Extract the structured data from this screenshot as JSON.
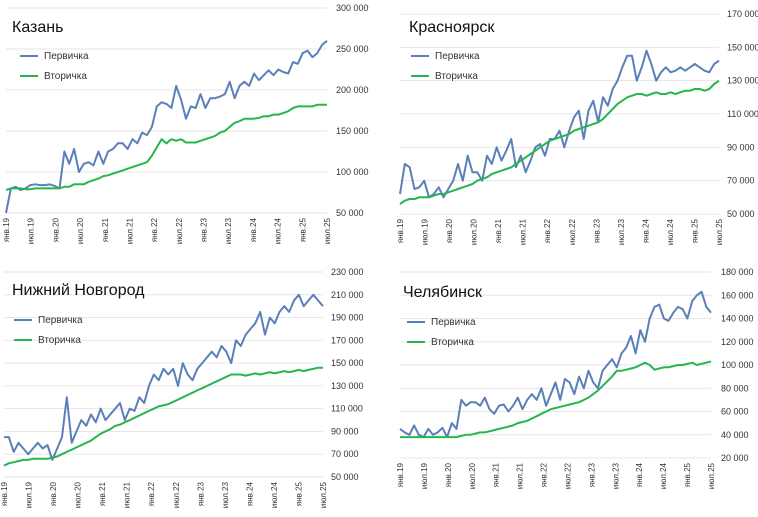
{
  "legend": {
    "primary": "Первичка",
    "secondary": "Вторичка"
  },
  "colors": {
    "primary": "#5b7fb9",
    "secondary": "#27b54f",
    "grid": "#e6e6e6"
  },
  "x_labels": [
    "янв.19",
    "июл.19",
    "янв.20",
    "июл.20",
    "янв.21",
    "июл.21",
    "янв.22",
    "июл.22",
    "янв.23",
    "июл.23",
    "янв.24",
    "июл.24",
    "янв.25",
    "июл.25"
  ],
  "chart_data": [
    {
      "type": "line",
      "title": "Казань",
      "ylim": [
        50000,
        300000
      ],
      "yticks": [
        "50 000",
        "100 000",
        "150 000",
        "200 000",
        "250 000",
        "300 000"
      ],
      "x_labels": [
        "янв.19",
        "июл.19",
        "янв.20",
        "июл.20",
        "янв.21",
        "июл.21",
        "янв.22",
        "июл.22",
        "янв.23",
        "июл.23",
        "янв.24",
        "июл.24",
        "янв.25",
        "июл.25"
      ],
      "series": [
        {
          "name": "Первичка",
          "values": [
            50000,
            80000,
            82000,
            78000,
            80000,
            84000,
            85000,
            84000,
            84000,
            85000,
            83000,
            80000,
            125000,
            110000,
            128000,
            100000,
            110000,
            112000,
            108000,
            125000,
            110000,
            125000,
            128000,
            135000,
            135000,
            128000,
            140000,
            135000,
            148000,
            145000,
            155000,
            180000,
            185000,
            183000,
            178000,
            205000,
            188000,
            165000,
            180000,
            178000,
            195000,
            178000,
            190000,
            190000,
            192000,
            195000,
            210000,
            190000,
            205000,
            210000,
            205000,
            220000,
            212000,
            218000,
            224000,
            218000,
            225000,
            222000,
            220000,
            234000,
            232000,
            245000,
            248000,
            240000,
            245000,
            255000,
            260000
          ]
        },
        {
          "name": "Вторичка",
          "values": [
            78000,
            80000,
            80000,
            80000,
            79000,
            79000,
            80000,
            80000,
            80000,
            80000,
            80000,
            80000,
            82000,
            82000,
            85000,
            85000,
            85000,
            88000,
            90000,
            92000,
            95000,
            96000,
            98000,
            100000,
            102000,
            104000,
            106000,
            108000,
            110000,
            112000,
            120000,
            130000,
            140000,
            135000,
            140000,
            138000,
            140000,
            136000,
            136000,
            136000,
            138000,
            140000,
            142000,
            144000,
            148000,
            150000,
            155000,
            160000,
            162000,
            165000,
            165000,
            165000,
            166000,
            168000,
            168000,
            170000,
            170000,
            172000,
            174000,
            178000,
            180000,
            180000,
            180000,
            180000,
            182000,
            182000,
            182000
          ]
        }
      ]
    },
    {
      "type": "line",
      "title": "Красноярск",
      "ylim": [
        50000,
        170000
      ],
      "yticks": [
        "50 000",
        "70 000",
        "90 000",
        "110 000",
        "130 000",
        "150 000",
        "170 000"
      ],
      "x_labels": [
        "янв.19",
        "июл.19",
        "янв.20",
        "июл.20",
        "янв.21",
        "июл.21",
        "янв.22",
        "июл.22",
        "янв.23",
        "июл.23",
        "янв.24",
        "июл.24",
        "янв.25",
        "июл.25"
      ],
      "series": [
        {
          "name": "Первичка",
          "values": [
            62000,
            80000,
            78000,
            65000,
            66000,
            70000,
            60000,
            62000,
            66000,
            60000,
            65000,
            70000,
            80000,
            70000,
            85000,
            75000,
            75000,
            70000,
            85000,
            80000,
            90000,
            82000,
            88000,
            95000,
            78000,
            85000,
            75000,
            82000,
            90000,
            92000,
            85000,
            95000,
            95000,
            100000,
            90000,
            100000,
            108000,
            112000,
            95000,
            112000,
            118000,
            105000,
            120000,
            115000,
            125000,
            130000,
            138000,
            145000,
            145000,
            130000,
            138000,
            148000,
            140000,
            130000,
            135000,
            138000,
            135000,
            136000,
            138000,
            136000,
            138000,
            140000,
            138000,
            136000,
            135000,
            140000,
            142000
          ]
        },
        {
          "name": "Вторичка",
          "values": [
            56000,
            58000,
            59000,
            59000,
            60000,
            60000,
            60000,
            61000,
            62000,
            62000,
            63000,
            64000,
            65000,
            66000,
            67000,
            68000,
            70000,
            71000,
            72000,
            74000,
            75000,
            76000,
            77000,
            78000,
            80000,
            82000,
            84000,
            86000,
            88000,
            90000,
            92000,
            94000,
            95000,
            96000,
            97000,
            98000,
            100000,
            101000,
            102000,
            103000,
            104000,
            105000,
            107000,
            110000,
            113000,
            116000,
            118000,
            120000,
            121000,
            122000,
            122000,
            121000,
            122000,
            123000,
            122000,
            122000,
            123000,
            122000,
            123000,
            124000,
            124000,
            125000,
            125000,
            124000,
            125000,
            128000,
            130000
          ]
        }
      ]
    },
    {
      "type": "line",
      "title": "Нижний Новгород",
      "ylim": [
        50000,
        230000
      ],
      "yticks": [
        "50 000",
        "70 000",
        "90 000",
        "110 000",
        "130 000",
        "150 000",
        "170 000",
        "190 000",
        "210 000",
        "230 000"
      ],
      "x_labels": [
        "янв.19",
        "июл.19",
        "янв.20",
        "июл.20",
        "янв.21",
        "июл.21",
        "янв.22",
        "июл.22",
        "янв.23",
        "июл.23",
        "янв.24",
        "июл.24",
        "янв.25",
        "июл.25"
      ],
      "series": [
        {
          "name": "Первичка",
          "values": [
            85000,
            85000,
            72000,
            80000,
            75000,
            70000,
            75000,
            80000,
            75000,
            78000,
            65000,
            75000,
            85000,
            120000,
            80000,
            90000,
            100000,
            95000,
            105000,
            98000,
            110000,
            100000,
            105000,
            110000,
            115000,
            100000,
            110000,
            108000,
            120000,
            115000,
            130000,
            140000,
            135000,
            145000,
            140000,
            145000,
            130000,
            150000,
            140000,
            135000,
            145000,
            150000,
            155000,
            160000,
            155000,
            165000,
            160000,
            150000,
            170000,
            165000,
            175000,
            180000,
            185000,
            195000,
            175000,
            190000,
            185000,
            195000,
            200000,
            195000,
            205000,
            210000,
            200000,
            205000,
            210000,
            205000,
            200000
          ]
        },
        {
          "name": "Вторичка",
          "values": [
            60000,
            62000,
            63000,
            64000,
            65000,
            65000,
            66000,
            66000,
            66000,
            66000,
            67000,
            68000,
            70000,
            72000,
            74000,
            76000,
            78000,
            80000,
            82000,
            85000,
            88000,
            90000,
            92000,
            95000,
            96000,
            98000,
            100000,
            102000,
            104000,
            106000,
            108000,
            110000,
            112000,
            113000,
            114000,
            116000,
            118000,
            120000,
            122000,
            124000,
            126000,
            128000,
            130000,
            132000,
            134000,
            136000,
            138000,
            140000,
            140000,
            140000,
            139000,
            140000,
            141000,
            140000,
            141000,
            142000,
            141000,
            142000,
            143000,
            142000,
            143000,
            144000,
            143000,
            144000,
            145000,
            146000,
            146000
          ]
        }
      ]
    },
    {
      "type": "line",
      "title": "Челябинск",
      "ylim": [
        20000,
        180000
      ],
      "yticks": [
        "20 000",
        "40 000",
        "60 000",
        "80 000",
        "100 000",
        "120 000",
        "140 000",
        "160 000",
        "180 000"
      ],
      "x_labels": [
        "янв.19",
        "июл.19",
        "янв.20",
        "июл.20",
        "янв.21",
        "июл.21",
        "янв.22",
        "июл.22",
        "янв.23",
        "июл.23",
        "янв.24",
        "июл.24",
        "янв.25",
        "июл.25"
      ],
      "series": [
        {
          "name": "Первичка",
          "values": [
            45000,
            42000,
            40000,
            48000,
            40000,
            38000,
            45000,
            40000,
            42000,
            46000,
            38000,
            50000,
            45000,
            70000,
            65000,
            68000,
            68000,
            65000,
            72000,
            62000,
            58000,
            65000,
            66000,
            60000,
            65000,
            72000,
            62000,
            70000,
            75000,
            70000,
            80000,
            65000,
            75000,
            85000,
            70000,
            88000,
            85000,
            75000,
            90000,
            80000,
            95000,
            85000,
            80000,
            95000,
            100000,
            105000,
            98000,
            110000,
            115000,
            125000,
            110000,
            130000,
            120000,
            140000,
            150000,
            152000,
            140000,
            138000,
            145000,
            150000,
            148000,
            140000,
            155000,
            160000,
            163000,
            150000,
            145000
          ]
        },
        {
          "name": "Вторичка",
          "values": [
            38000,
            38000,
            38000,
            38000,
            38000,
            38000,
            38000,
            38000,
            38000,
            38000,
            38000,
            38000,
            38000,
            39000,
            40000,
            40000,
            41000,
            42000,
            42000,
            43000,
            44000,
            45000,
            46000,
            47000,
            48000,
            50000,
            51000,
            52000,
            54000,
            56000,
            58000,
            60000,
            62000,
            63000,
            64000,
            65000,
            66000,
            67000,
            68000,
            70000,
            72000,
            75000,
            78000,
            82000,
            86000,
            90000,
            95000,
            95000,
            96000,
            97000,
            98000,
            100000,
            102000,
            100000,
            96000,
            97000,
            98000,
            98000,
            99000,
            100000,
            100000,
            101000,
            102000,
            100000,
            101000,
            102000,
            103000
          ]
        }
      ]
    }
  ]
}
